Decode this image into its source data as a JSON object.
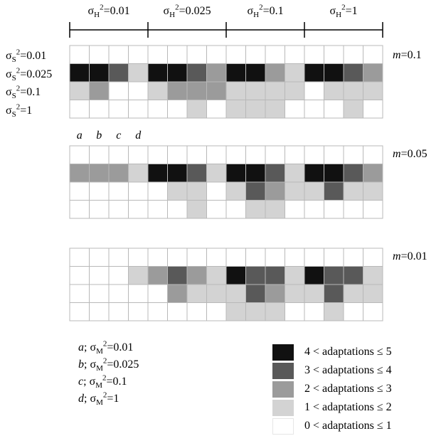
{
  "chart_data": {
    "type": "heatmap",
    "top_headers": [
      {
        "base": "σ",
        "sub": "H",
        "sup": "2",
        "value": "=0.01"
      },
      {
        "base": "σ",
        "sub": "H",
        "sup": "2",
        "value": "=0.025"
      },
      {
        "base": "σ",
        "sub": "H",
        "sup": "2",
        "value": "=0.1"
      },
      {
        "base": "σ",
        "sub": "H",
        "sup": "2",
        "value": "=1"
      }
    ],
    "row_labels": [
      {
        "base": "σ",
        "sub": "S",
        "sup": "2",
        "value": "=0.01"
      },
      {
        "base": "σ",
        "sub": "S",
        "sup": "2",
        "value": "=0.025"
      },
      {
        "base": "σ",
        "sub": "S",
        "sup": "2",
        "value": "=0.1"
      },
      {
        "base": "σ",
        "sub": "S",
        "sup": "2",
        "value": "=1"
      }
    ],
    "column_letters": [
      "a",
      "b",
      "c",
      "d"
    ],
    "panels": [
      {
        "m_italic": "m",
        "m_value": "=0.1",
        "cells": [
          [
            0,
            0,
            0,
            0,
            0,
            0,
            0,
            0,
            0,
            0,
            0,
            0,
            0,
            0,
            0,
            0
          ],
          [
            4,
            4,
            3,
            1,
            4,
            4,
            3,
            2,
            4,
            4,
            2,
            1,
            4,
            4,
            3,
            2
          ],
          [
            1,
            2,
            0,
            0,
            1,
            2,
            2,
            2,
            1,
            1,
            1,
            1,
            0,
            1,
            1,
            1
          ],
          [
            0,
            0,
            0,
            0,
            0,
            0,
            1,
            0,
            1,
            1,
            1,
            0,
            0,
            0,
            1,
            0
          ]
        ]
      },
      {
        "m_italic": "m",
        "m_value": "=0.05",
        "cells": [
          [
            0,
            0,
            0,
            0,
            0,
            0,
            0,
            0,
            0,
            0,
            0,
            0,
            0,
            0,
            0,
            0
          ],
          [
            2,
            2,
            2,
            1,
            4,
            4,
            3,
            1,
            4,
            4,
            3,
            1,
            4,
            4,
            3,
            2
          ],
          [
            0,
            0,
            0,
            0,
            0,
            1,
            1,
            0,
            1,
            3,
            2,
            1,
            1,
            3,
            1,
            1
          ],
          [
            0,
            0,
            0,
            0,
            0,
            0,
            1,
            0,
            0,
            1,
            1,
            0,
            0,
            0,
            0,
            0
          ]
        ]
      },
      {
        "m_italic": "m",
        "m_value": "=0.01",
        "cells": [
          [
            0,
            0,
            0,
            0,
            0,
            0,
            0,
            0,
            0,
            0,
            0,
            0,
            0,
            0,
            0,
            0
          ],
          [
            0,
            0,
            0,
            1,
            2,
            3,
            2,
            1,
            4,
            3,
            3,
            1,
            4,
            3,
            3,
            1
          ],
          [
            0,
            0,
            0,
            0,
            0,
            2,
            1,
            1,
            1,
            3,
            2,
            1,
            1,
            3,
            1,
            1
          ],
          [
            0,
            0,
            0,
            0,
            0,
            0,
            0,
            0,
            1,
            1,
            1,
            0,
            0,
            1,
            0,
            0
          ]
        ]
      }
    ],
    "mutation_legend": [
      {
        "letter": "a",
        "rest": "; ",
        "base": "σ",
        "sub": "M",
        "sup": "2",
        "value": "=0.01"
      },
      {
        "letter": "b",
        "rest": "; ",
        "base": "σ",
        "sub": "M",
        "sup": "2",
        "value": "=0.025"
      },
      {
        "letter": "c",
        "rest": "; ",
        "base": "σ",
        "sub": "M",
        "sup": "2",
        "value": "=0.1"
      },
      {
        "letter": "d",
        "rest": "; ",
        "base": "σ",
        "sub": "M",
        "sup": "2",
        "value": "=1"
      }
    ],
    "color_legend": [
      {
        "label": "4 < adaptations ≤ 5",
        "color": "#111111"
      },
      {
        "label": "3 < adaptations ≤ 4",
        "color": "#595959"
      },
      {
        "label": "2 < adaptations ≤ 3",
        "color": "#9b9b9b"
      },
      {
        "label": "1 < adaptations ≤ 2",
        "color": "#d3d3d3"
      },
      {
        "label": "0 < adaptations ≤ 1",
        "color": "#ffffff"
      }
    ],
    "level_colors": [
      "#ffffff",
      "#d3d3d3",
      "#9b9b9b",
      "#595959",
      "#111111"
    ],
    "grid_color": "#b8b8b8"
  }
}
